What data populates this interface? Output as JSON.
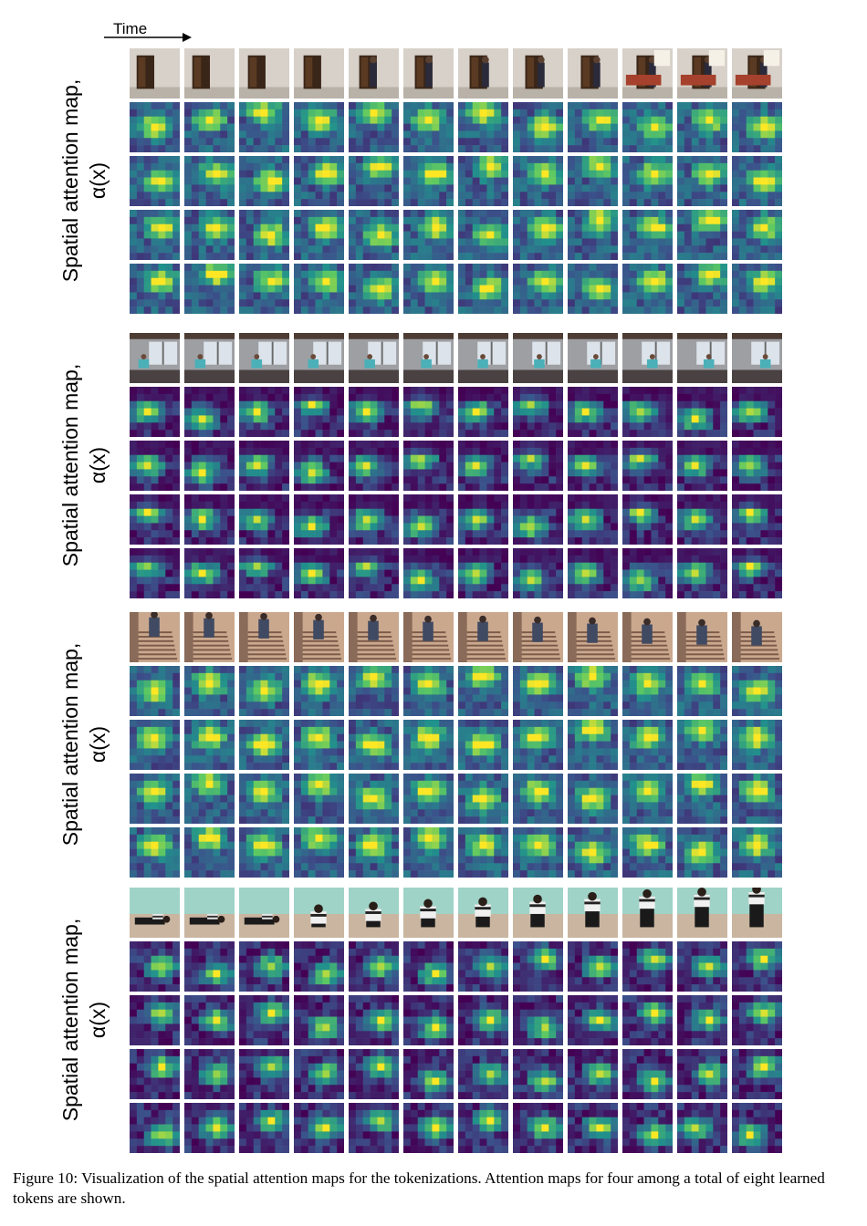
{
  "figure": {
    "time_label": "Time",
    "caption": "Figure 10: Visualization of the spatial attention maps for the tokenizations. Attention maps for four among a total of eight learned tokens are shown.",
    "colormap": [
      "#440154",
      "#3b528b",
      "#21918c",
      "#5ec962",
      "#fde725"
    ],
    "panels": [
      {
        "ylabel_line1": "Spatial attention map,",
        "ylabel_line2": "α(x)",
        "scene": "room-doorway",
        "frame_count": 12,
        "token_rows": 4
      },
      {
        "ylabel_line1": "Spatial attention map,",
        "ylabel_line2": "α(x)",
        "scene": "window-room",
        "frame_count": 12,
        "token_rows": 4
      },
      {
        "ylabel_line1": "Spatial attention map,",
        "ylabel_line2": "α(x)",
        "scene": "staircase",
        "frame_count": 12,
        "token_rows": 4
      },
      {
        "ylabel_line1": "Spatial attention map,",
        "ylabel_line2": "α(x)",
        "scene": "person-on-floor",
        "frame_count": 12,
        "token_rows": 4
      }
    ]
  }
}
